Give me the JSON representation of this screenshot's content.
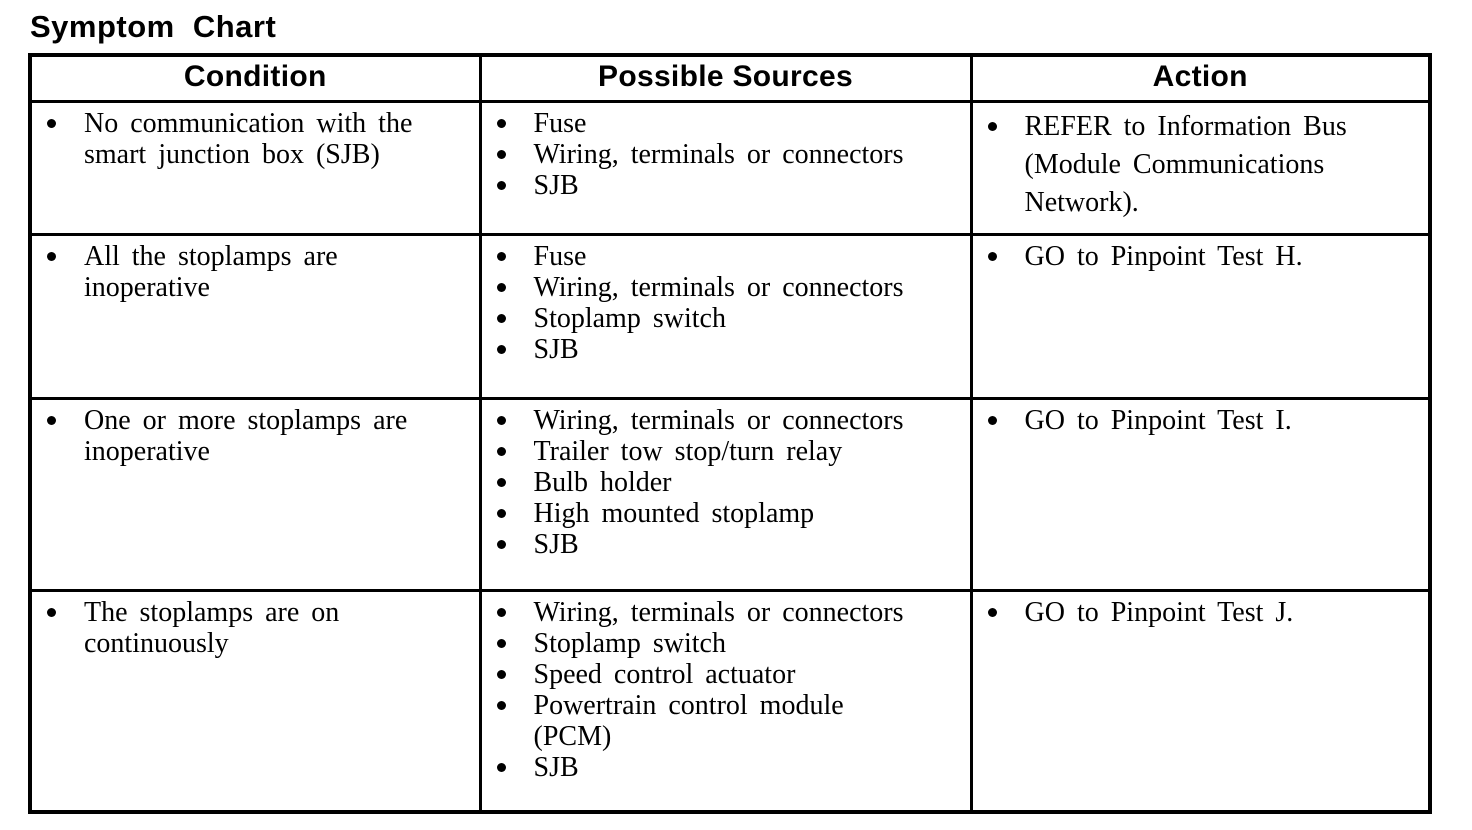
{
  "title": "Symptom Chart",
  "colors": {
    "text": "#000000",
    "background": "#ffffff",
    "border": "#000000"
  },
  "table": {
    "headers": [
      "Condition",
      "Possible Sources",
      "Action"
    ],
    "rows": [
      {
        "condition": "No communication with the smart junction box (SJB)",
        "sources": [
          "Fuse",
          "Wiring, terminals or connectors",
          "SJB"
        ],
        "action": "REFER to Information Bus (Module Communications Network)."
      },
      {
        "condition": "All the stoplamps are inoperative",
        "sources": [
          "Fuse",
          "Wiring, terminals or connectors",
          "Stoplamp switch",
          "SJB"
        ],
        "action": "GO to Pinpoint Test H."
      },
      {
        "condition": "One or more stoplamps are inoperative",
        "sources": [
          "Wiring, terminals or connectors",
          "Trailer tow stop/turn relay",
          "Bulb holder",
          "High mounted stoplamp",
          "SJB"
        ],
        "action": "GO to Pinpoint Test I."
      },
      {
        "condition": "The stoplamps are on continuously",
        "sources": [
          "Wiring, terminals or connectors",
          "Stoplamp switch",
          "Speed control actuator",
          "Powertrain control module (PCM)",
          "SJB"
        ],
        "action": "GO to Pinpoint Test J."
      }
    ]
  }
}
